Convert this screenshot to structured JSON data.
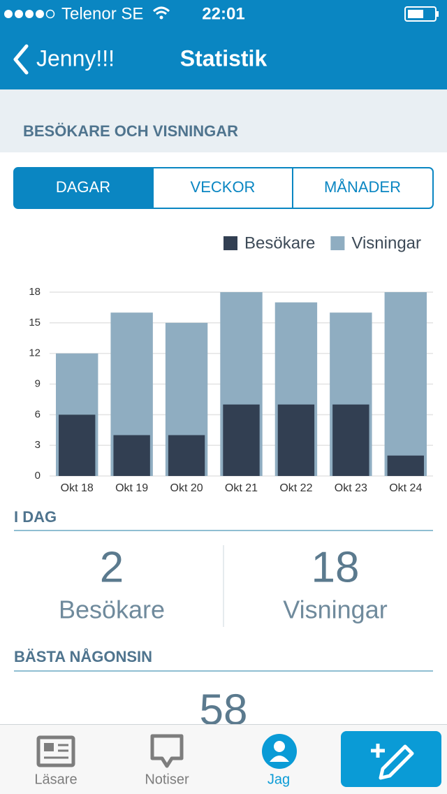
{
  "status_bar": {
    "carrier": "Telenor SE",
    "time": "22:01"
  },
  "nav": {
    "back": "Jenny!!!",
    "title": "Statistik"
  },
  "section_title": "BESÖKARE OCH VISNINGAR",
  "tabs": [
    "DAGAR",
    "VECKOR",
    "MÅNADER"
  ],
  "chart_data": {
    "type": "bar",
    "categories": [
      "Okt 18",
      "Okt 19",
      "Okt 20",
      "Okt 21",
      "Okt 22",
      "Okt 23",
      "Okt 24"
    ],
    "series": [
      {
        "name": "Besökare",
        "color": "#323f52",
        "values": [
          6,
          4,
          4,
          7,
          7,
          7,
          2
        ]
      },
      {
        "name": "Visningar",
        "color": "#8fadc1",
        "values": [
          12,
          16,
          15,
          18,
          17,
          16,
          18
        ]
      }
    ],
    "ylim": [
      0,
      18
    ],
    "yticks": [
      0,
      3,
      6,
      9,
      12,
      15,
      18
    ],
    "grid": true,
    "legend": "top-right"
  },
  "today": {
    "title": "I DAG",
    "stats": [
      {
        "value": 2,
        "label": "Besökare"
      },
      {
        "value": 18,
        "label": "Visningar"
      }
    ]
  },
  "best": {
    "title": "BÄSTA NÅGONSIN",
    "value": 58
  },
  "tab_bar": [
    "Läsare",
    "Notiser",
    "Jag"
  ]
}
